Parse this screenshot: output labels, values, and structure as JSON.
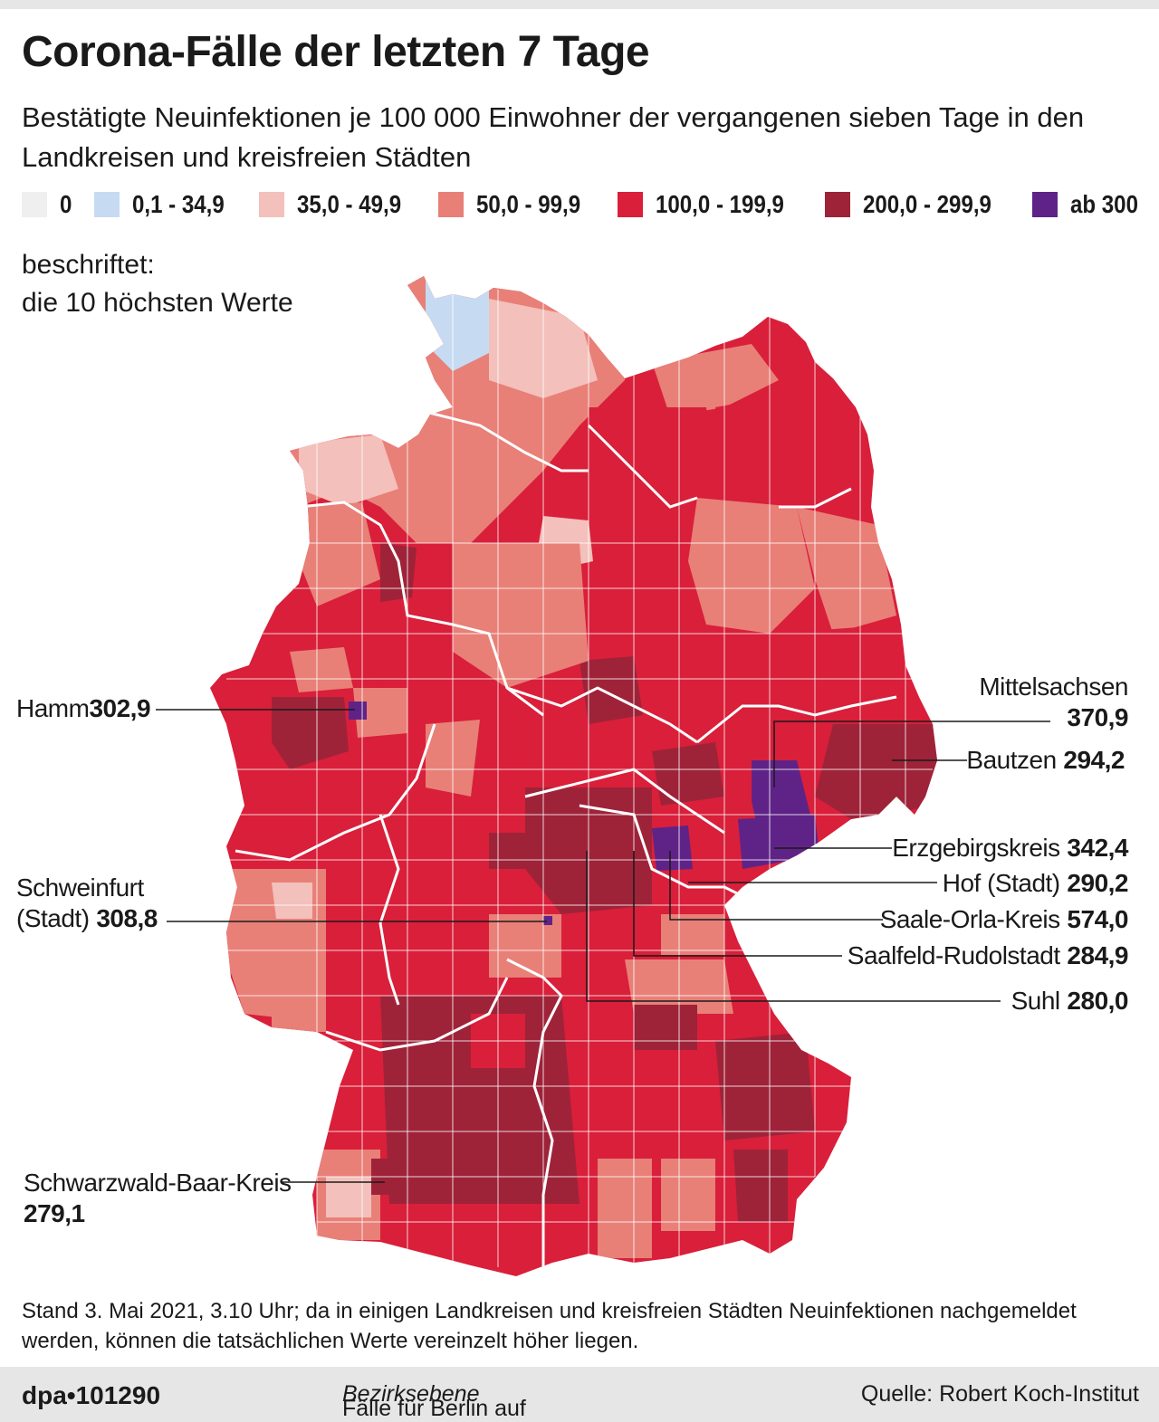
{
  "title": "Corona-Fälle der letzten 7 Tage",
  "subtitle": "Bestätigte Neuinfektionen je 100 000 Einwohner der vergangenen sieben Tage in den Landkreisen und kreisfreien Städten",
  "legend": [
    {
      "label": "0",
      "color": "#efefef"
    },
    {
      "label": "0,1 - 34,9",
      "color": "#c6dbf2"
    },
    {
      "label": "35,0 - 49,9",
      "color": "#f3c0bb"
    },
    {
      "label": "50,0 - 99,9",
      "color": "#e88078"
    },
    {
      "label": "100,0 - 199,9",
      "color": "#d91f3a"
    },
    {
      "label": "200,0 - 299,9",
      "color": "#9e2339"
    },
    {
      "label": "ab 300",
      "color": "#5f2387"
    }
  ],
  "note": {
    "line1": "beschriftet:",
    "line2": "die 10 höchsten Werte"
  },
  "labels": {
    "hamm": {
      "name": "Hamm",
      "value": "302,9"
    },
    "schweinfurt": {
      "name1": "Schweinfurt",
      "name2": "(Stadt)",
      "value": "308,8"
    },
    "schwarzwald": {
      "name": "Schwarzwald-Baar-Kreis",
      "value": "279,1"
    },
    "mittelsachsen": {
      "name": "Mittelsachsen",
      "value": "370,9"
    },
    "bautzen": {
      "name": "Bautzen",
      "value": "294,2"
    },
    "erzgebirgskreis": {
      "name": "Erzgebirgskreis",
      "value": "342,4"
    },
    "hof": {
      "name": "Hof (Stadt)",
      "value": "290,2"
    },
    "saale_orla": {
      "name": "Saale-Orla-Kreis",
      "value": "574,0"
    },
    "saalfeld": {
      "name": "Saalfeld-Rudolstadt",
      "value": "284,9"
    },
    "suhl": {
      "name": "Suhl",
      "value": "280,0"
    }
  },
  "footnote": "Stand 3. Mai 2021, 3.10 Uhr; da in einigen Landkreisen und kreisfreien Städten Neuinfektionen nachgemeldet werden, können die tatsächlichen Werte vereinzelt höher liegen.",
  "footer": {
    "agency": "dpa•101290",
    "middle_prefix": "Fälle für Berlin auf ",
    "middle_italic": "Bezirksebene",
    "source": "Quelle: Robert Koch-Institut"
  }
}
